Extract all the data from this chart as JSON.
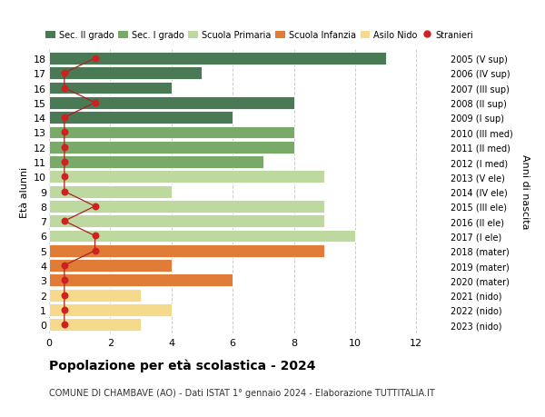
{
  "ages": [
    18,
    17,
    16,
    15,
    14,
    13,
    12,
    11,
    10,
    9,
    8,
    7,
    6,
    5,
    4,
    3,
    2,
    1,
    0
  ],
  "right_labels": [
    "2005 (V sup)",
    "2006 (IV sup)",
    "2007 (III sup)",
    "2008 (II sup)",
    "2009 (I sup)",
    "2010 (III med)",
    "2011 (II med)",
    "2012 (I med)",
    "2013 (V ele)",
    "2014 (IV ele)",
    "2015 (III ele)",
    "2016 (II ele)",
    "2017 (I ele)",
    "2018 (mater)",
    "2019 (mater)",
    "2020 (mater)",
    "2021 (nido)",
    "2022 (nido)",
    "2023 (nido)"
  ],
  "bar_values": [
    11,
    5,
    4,
    8,
    6,
    8,
    8,
    7,
    9,
    4,
    9,
    9,
    10,
    9,
    4,
    6,
    3,
    4,
    3
  ],
  "bar_colors": [
    "#4a7a55",
    "#4a7a55",
    "#4a7a55",
    "#4a7a55",
    "#4a7a55",
    "#7aaa6a",
    "#7aaa6a",
    "#7aaa6a",
    "#bdd9a0",
    "#bdd9a0",
    "#bdd9a0",
    "#bdd9a0",
    "#bdd9a0",
    "#e07c38",
    "#e07c38",
    "#e07c38",
    "#f5da8c",
    "#f5da8c",
    "#f5da8c"
  ],
  "stranieri_x": [
    1.5,
    0.5,
    0.5,
    1.5,
    0.5,
    0.5,
    0.5,
    0.5,
    0.5,
    0.5,
    1.5,
    0.5,
    1.5,
    1.5,
    0.5,
    0.5,
    0.5,
    0.5,
    0.5
  ],
  "legend_labels": [
    "Sec. II grado",
    "Sec. I grado",
    "Scuola Primaria",
    "Scuola Infanzia",
    "Asilo Nido",
    "Stranieri"
  ],
  "legend_colors": [
    "#4a7a55",
    "#7aaa6a",
    "#bdd9a0",
    "#e07c38",
    "#f5da8c",
    "#cc2222"
  ],
  "title": "Popolazione per età scolastica - 2024",
  "subtitle": "COMUNE DI CHAMBAVE (AO) - Dati ISTAT 1° gennaio 2024 - Elaborazione TUTTITALIA.IT",
  "ylabel_left": "Età alunni",
  "ylabel_right": "Anni di nascita",
  "xlim": [
    0,
    13
  ],
  "xticks": [
    0,
    2,
    4,
    6,
    8,
    10,
    12
  ],
  "bar_height": 0.85,
  "background_color": "#ffffff",
  "grid_color": "#cccccc"
}
